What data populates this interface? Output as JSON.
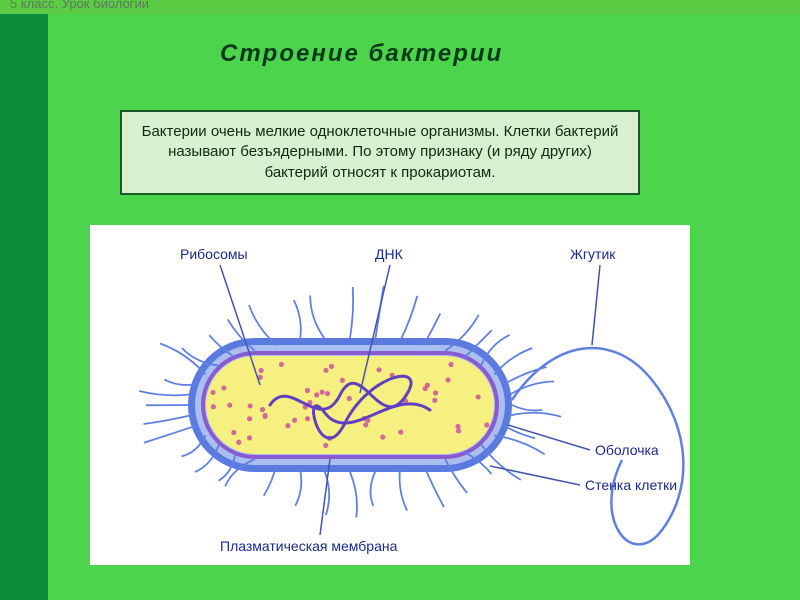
{
  "colors": {
    "bg_outer": "#5ccc44",
    "bg_side": "#0a8c3a",
    "bg_main": "#4cd44c",
    "title": "#0a3a1a",
    "lesson_text": "#5a7a5a",
    "box_bg": "#d8f0d0",
    "box_border": "#1a5a2a",
    "box_text": "#102a10",
    "cell_wall": "#5a7ae0",
    "cell_wall_inner": "#aabff0",
    "membrane": "#8a5ad0",
    "cytoplasm": "#f5f080",
    "dna": "#6040c0",
    "ribosome": "#d06a9a",
    "pili": "#6080e0",
    "flagellum": "#6080e0",
    "leader": "#4454aa",
    "label_text": "#1a2a88"
  },
  "lesson_label": "5 класс. Урок биологии",
  "title": "Строение   бактерии",
  "info_text": "Бактерии очень мелкие одноклеточные организмы. Клетки бактерий называют безъядерными. По  этому признаку (и ряду других) бактерий относят к   прокариотам.",
  "labels": {
    "ribosomes": "Рибосомы",
    "dna": "ДНК",
    "flagellum": "Жгутик",
    "envelope": "Оболочка",
    "cell_wall": "Стенка клетки",
    "membrane": "Плазматическая мембрана"
  },
  "diagram": {
    "label_fontsize": 14,
    "ribosome_count": 48,
    "pili_count": 40
  }
}
